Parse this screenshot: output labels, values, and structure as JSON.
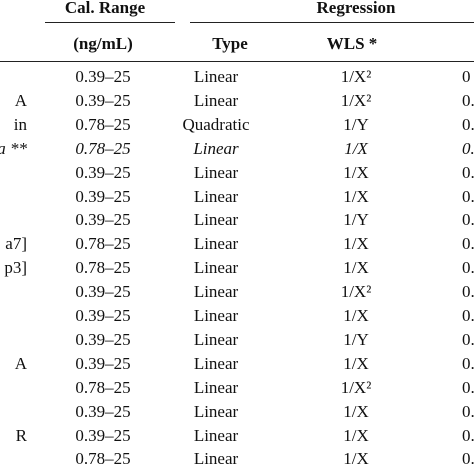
{
  "table": {
    "header_top": [
      "Cal. Range",
      "Regression"
    ],
    "header_sub": [
      "(ng/mL)",
      "Type",
      "WLS *"
    ],
    "rows": [
      {
        "cells": [
          "",
          "0.39–25",
          "Linear",
          "1/X²",
          "0"
        ]
      },
      {
        "cells": [
          "A",
          "0.39–25",
          "Linear",
          "1/X²",
          "0."
        ]
      },
      {
        "cells": [
          "in",
          "0.78–25",
          "Quadratic",
          "1/Y",
          "0."
        ]
      },
      {
        "cells": [
          "a **",
          "0.78–25",
          "Linear",
          "1/X",
          "0."
        ],
        "italic": true
      },
      {
        "cells": [
          "",
          "0.39–25",
          "Linear",
          "1/X",
          "0."
        ]
      },
      {
        "cells": [
          "",
          "0.39–25",
          "Linear",
          "1/X",
          "0."
        ]
      },
      {
        "cells": [
          "",
          "0.39–25",
          "Linear",
          "1/Y",
          "0."
        ]
      },
      {
        "cells": [
          "a7]",
          "0.78–25",
          "Linear",
          "1/X",
          "0."
        ]
      },
      {
        "cells": [
          "p3]",
          "0.78–25",
          "Linear",
          "1/X",
          "0."
        ]
      },
      {
        "cells": [
          "",
          "0.39–25",
          "Linear",
          "1/X²",
          "0."
        ]
      },
      {
        "cells": [
          "",
          "0.39–25",
          "Linear",
          "1/X",
          "0."
        ]
      },
      {
        "cells": [
          "",
          "0.39–25",
          "Linear",
          "1/Y",
          "0."
        ]
      },
      {
        "cells": [
          "A",
          "0.39–25",
          "Linear",
          "1/X",
          "0."
        ]
      },
      {
        "cells": [
          "",
          "0.78–25",
          "Linear",
          "1/X²",
          "0."
        ]
      },
      {
        "cells": [
          "",
          "0.39–25",
          "Linear",
          "1/X",
          "0."
        ]
      },
      {
        "cells": [
          "R",
          "0.39–25",
          "Linear",
          "1/X",
          "0."
        ]
      },
      {
        "cells": [
          "",
          "0.78–25",
          "Linear",
          "1/X",
          "0."
        ]
      }
    ]
  }
}
